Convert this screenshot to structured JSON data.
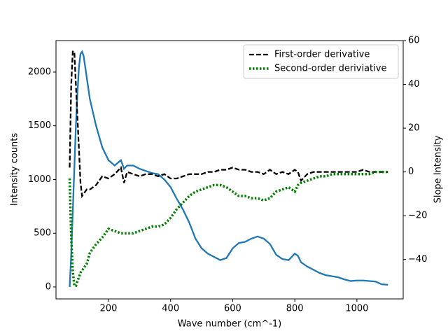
{
  "chart_data": {
    "type": "line",
    "xlabel": "Wave number (cm^-1)",
    "ylabel": "Intensity counts",
    "y2label": "Slope Intensity",
    "x": [
      75,
      80,
      85,
      90,
      95,
      100,
      105,
      110,
      115,
      120,
      130,
      140,
      160,
      180,
      200,
      220,
      240,
      250,
      260,
      280,
      300,
      320,
      340,
      360,
      380,
      400,
      420,
      440,
      460,
      480,
      500,
      520,
      540,
      560,
      580,
      600,
      620,
      640,
      660,
      680,
      700,
      720,
      740,
      760,
      780,
      800,
      810,
      820,
      840,
      860,
      880,
      900,
      920,
      940,
      960,
      980,
      1000,
      1020,
      1040,
      1060,
      1080,
      1100
    ],
    "series": [
      {
        "color": "#1f77b4",
        "linestyle": "solid",
        "axis": "y",
        "values": [
          0,
          300,
          700,
          1100,
          1500,
          1800,
          2050,
          2170,
          2190,
          2150,
          1950,
          1750,
          1500,
          1300,
          1180,
          1130,
          1180,
          1100,
          1130,
          1130,
          1100,
          1080,
          1060,
          1050,
          1000,
          930,
          820,
          720,
          600,
          450,
          360,
          310,
          280,
          250,
          270,
          360,
          410,
          420,
          450,
          470,
          450,
          400,
          300,
          260,
          250,
          310,
          290,
          230,
          190,
          160,
          130,
          110,
          100,
          90,
          70,
          55,
          60,
          60,
          55,
          50,
          25,
          20
        ]
      },
      {
        "name": "First-order derivative",
        "color": "#000000",
        "linestyle": "dashed",
        "axis": "y2",
        "values": [
          2,
          40,
          55,
          55,
          40,
          25,
          10,
          -5,
          -11,
          -10,
          -8,
          -8,
          -6,
          -2,
          -3,
          -1,
          2,
          -5,
          0,
          -1,
          -2,
          -1,
          -1,
          -2,
          -1,
          -3,
          -3,
          -2,
          -1,
          -1,
          -1,
          0,
          0,
          1,
          1,
          2,
          1,
          1,
          0,
          0,
          -1,
          1,
          -1,
          0,
          -1,
          1,
          0,
          -4,
          -1,
          0,
          0,
          0,
          0,
          0,
          0,
          0,
          0,
          1,
          0,
          0,
          0,
          0
        ]
      },
      {
        "name": "Second-order deriviative",
        "color": "#008000",
        "linestyle": "dotted",
        "axis": "y2",
        "values": [
          -3,
          -30,
          -45,
          -52,
          -52,
          -50,
          -48,
          -46,
          -45,
          -44,
          -42,
          -37,
          -33,
          -30,
          -26,
          -27,
          -28,
          -28,
          -28,
          -28,
          -27,
          -26,
          -25,
          -25,
          -24,
          -21,
          -17,
          -14,
          -11,
          -9,
          -8,
          -7,
          -6,
          -6,
          -7,
          -9,
          -11,
          -11,
          -12,
          -12,
          -13,
          -12,
          -9,
          -8,
          -7,
          -9,
          -6,
          -5,
          -4,
          -3,
          -2,
          -2,
          -1,
          -1,
          -1,
          -1,
          -1,
          -1,
          -1,
          0,
          0,
          0
        ]
      }
    ],
    "xlim": [
      31,
      1149
    ],
    "xticks": [
      200,
      400,
      600,
      800,
      1000
    ],
    "ylim": [
      -111,
      2293
    ],
    "yticks": [
      0,
      500,
      1000,
      1500,
      2000
    ],
    "y2lim": [
      -58,
      60
    ],
    "y2ticks": [
      {
        "value": -40,
        "label": "−40"
      },
      {
        "value": -20,
        "label": "−20"
      },
      0,
      20,
      40,
      60
    ],
    "grid": false,
    "legend": "upper right"
  }
}
